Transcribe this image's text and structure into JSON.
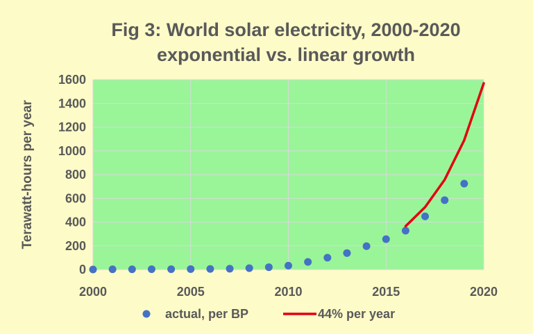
{
  "chart_data": {
    "type": "scatter",
    "title": "Fig 3: World solar electricity, 2000-2020",
    "subtitle": "exponential vs. linear growth",
    "xlabel": "",
    "ylabel": "Terawatt-hours per year",
    "xlim": [
      2000,
      2020
    ],
    "ylim": [
      0,
      1600
    ],
    "x_ticks": [
      2000,
      2005,
      2010,
      2015,
      2020
    ],
    "y_ticks": [
      0,
      200,
      400,
      600,
      800,
      1000,
      1200,
      1400,
      1600
    ],
    "grid": true,
    "legend_position": "bottom",
    "plot_background": "#99f598",
    "series": [
      {
        "name": "actual, per BP",
        "type": "scatter",
        "color": "#4472c4",
        "x": [
          2000,
          2001,
          2002,
          2003,
          2004,
          2005,
          2006,
          2007,
          2008,
          2009,
          2010,
          2011,
          2012,
          2013,
          2014,
          2015,
          2016,
          2017,
          2018,
          2019
        ],
        "y": [
          1,
          2,
          2,
          3,
          3,
          4,
          5,
          7,
          12,
          20,
          33,
          64,
          100,
          139,
          197,
          256,
          328,
          448,
          585,
          724
        ]
      },
      {
        "name": "44% per year",
        "type": "line",
        "color": "#e3000f",
        "x": [
          2016,
          2017,
          2018,
          2019,
          2020
        ],
        "y": [
          365,
          526,
          757,
          1090,
          1570
        ]
      }
    ]
  }
}
